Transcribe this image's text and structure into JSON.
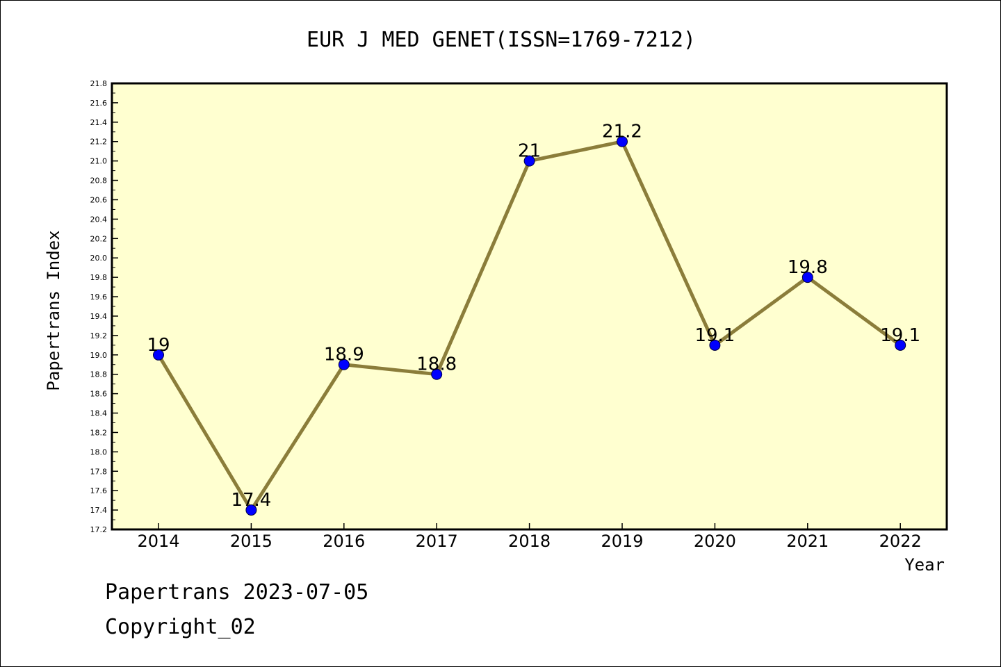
{
  "chart_data": {
    "type": "line",
    "title": "EUR J MED GENET(ISSN=1769-7212)",
    "xlabel": "Year",
    "ylabel": "Papertrans Index",
    "categories": [
      "2014",
      "2015",
      "2016",
      "2017",
      "2018",
      "2019",
      "2020",
      "2021",
      "2022"
    ],
    "values": [
      19,
      17.4,
      18.9,
      18.8,
      21,
      21.2,
      19.1,
      19.8,
      19.1
    ],
    "data_labels": [
      "19",
      "17.4",
      "18.9",
      "18.8",
      "21",
      "21.2",
      "19.1",
      "19.8",
      "19.1"
    ],
    "ylim": [
      17.2,
      21.8
    ],
    "y_ticks": [
      "17.2",
      "17.4",
      "17.6",
      "17.8",
      "18.0",
      "18.2",
      "18.4",
      "18.6",
      "18.8",
      "19.0",
      "19.2",
      "19.4",
      "19.6",
      "19.8",
      "20.0",
      "20.2",
      "20.4",
      "20.6",
      "20.8",
      "21.0",
      "21.2",
      "21.4",
      "21.6",
      "21.8"
    ],
    "grid": false,
    "colors": {
      "plot_background": "#ffffd0",
      "line": "#8b7d3a",
      "marker": "#0000ff"
    }
  },
  "footer": {
    "date_line": "Papertrans 2023-07-05",
    "copyright": "Copyright_02"
  }
}
